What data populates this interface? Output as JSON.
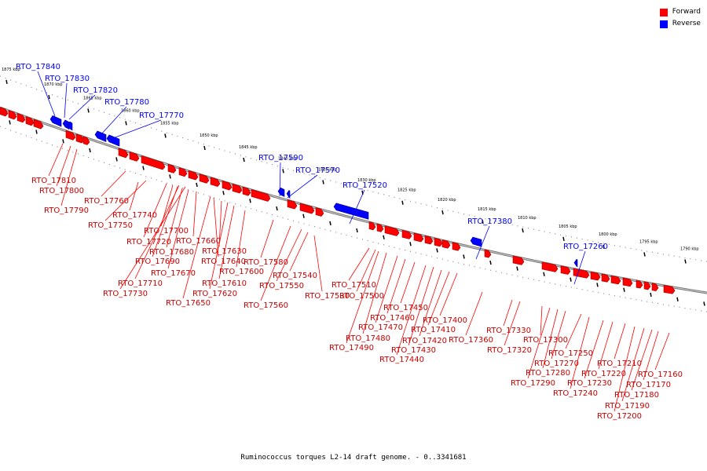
{
  "legend": [
    {
      "label": "Forward",
      "color": "#ff0000"
    },
    {
      "label": "Reverse",
      "color": "#0000ff"
    }
  ],
  "caption": "Ruminococcus torques L2-14 draft genome. - 0..3341681",
  "scale_ticks": [
    "1875 kbp",
    "1870 kbp",
    "1865 kbp",
    "1860 kbp",
    "1855 kbp",
    "1850 kbp",
    "1845 kbp",
    "1840 kbp",
    "1835 kbp",
    "1830 kbp",
    "1825 kbp",
    "1820 kbp",
    "1815 kbp",
    "1810 kbp",
    "1805 kbp",
    "1800 kbp",
    "1795 kbp",
    "1790 kbp"
  ],
  "forward_genes": [
    "RTO_17810",
    "RTO_17800",
    "RTO_17790",
    "RTO_17760",
    "RTO_17750",
    "RTO_17740",
    "RTO_17730",
    "RTO_17720",
    "RTO_17710",
    "RTO_17700",
    "RTO_17690",
    "RTO_17680",
    "RTO_17670",
    "RTO_17660",
    "RTO_17650",
    "RTO_17640",
    "RTO_17630",
    "RTO_17620",
    "RTO_17610",
    "RTO_17600",
    "RTO_17580",
    "RTO_17560",
    "RTO_17550",
    "RTO_17540",
    "RTO_17530",
    "RTO_17510",
    "RTO_17500",
    "RTO_17490",
    "RTO_17480",
    "RTO_17470",
    "RTO_17460",
    "RTO_17450",
    "RTO_17440",
    "RTO_17430",
    "RTO_17420",
    "RTO_17410",
    "RTO_17400",
    "RTO_17360",
    "RTO_17330",
    "RTO_17320",
    "RTO_17300",
    "RTO_17290",
    "RTO_17280",
    "RTO_17270",
    "RTO_17250",
    "RTO_17240",
    "RTO_17230",
    "RTO_17220",
    "RTO_17210",
    "RTO_17200",
    "RTO_17190",
    "RTO_17180",
    "RTO_17170",
    "RTO_17160"
  ],
  "reverse_genes": [
    "RTO_17840",
    "RTO_17830",
    "RTO_17820",
    "RTO_17780",
    "RTO_17770",
    "RTO_17590",
    "RTO_17570",
    "RTO_17520",
    "RTO_17380",
    "RTO_17260"
  ]
}
